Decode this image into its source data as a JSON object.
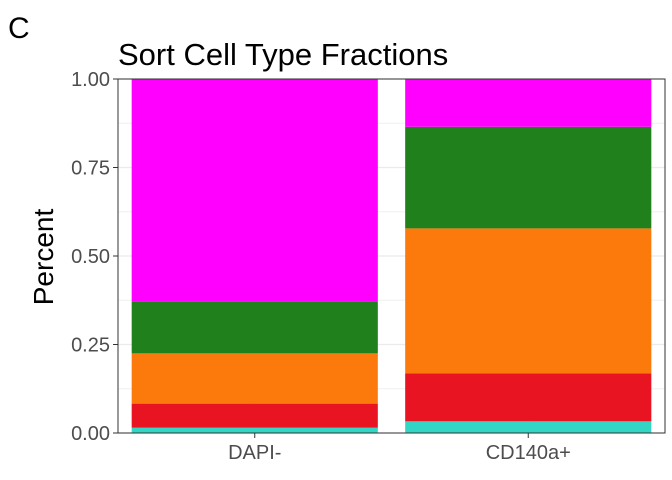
{
  "panel_label": "C",
  "chart_data": {
    "type": "bar",
    "stacked": true,
    "title": "Sort Cell Type Fractions",
    "xlabel": "",
    "ylabel": "Percent",
    "ylim": [
      0,
      1
    ],
    "yticks": [
      "0.00",
      "0.25",
      "0.50",
      "0.75",
      "1.00"
    ],
    "categories": [
      "DAPI-",
      "CD140a+"
    ],
    "grid": true,
    "legend": "none",
    "series": [
      {
        "color": "#33d6c4",
        "values": [
          0.015,
          0.033
        ]
      },
      {
        "color": "#e81421",
        "values": [
          0.068,
          0.135
        ]
      },
      {
        "color": "#fb7a0b",
        "values": [
          0.142,
          0.41
        ]
      },
      {
        "color": "#20801c",
        "values": [
          0.147,
          0.287
        ]
      },
      {
        "color": "#ff00ff",
        "values": [
          0.628,
          0.135
        ]
      }
    ]
  }
}
